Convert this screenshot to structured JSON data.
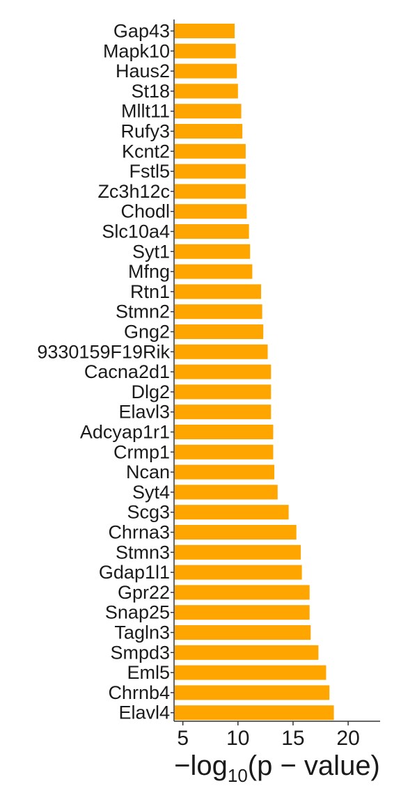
{
  "chart_data": {
    "type": "bar",
    "orientation": "horizontal",
    "categories": [
      "Gap43",
      "Mapk10",
      "Haus2",
      "St18",
      "Mllt11",
      "Rufy3",
      "Kcnt2",
      "Fstl5",
      "Zc3h12c",
      "Chodl",
      "Slc10a4",
      "Syt1",
      "Mfng",
      "Rtn1",
      "Stmn2",
      "Gng2",
      "9330159F19Rik",
      "Cacna2d1",
      "Dlg2",
      "Elavl3",
      "Adcyap1r1",
      "Crmp1",
      "Ncan",
      "Syt4",
      "Scg3",
      "Chrna3",
      "Stmn3",
      "Gdap1l1",
      "Gpr22",
      "Snap25",
      "Tagln3",
      "Smpd3",
      "Eml5",
      "Chrnb4",
      "Elavl4"
    ],
    "values": [
      9.7,
      9.8,
      9.9,
      10.0,
      10.3,
      10.4,
      10.7,
      10.7,
      10.7,
      10.8,
      11.0,
      11.1,
      11.3,
      12.1,
      12.2,
      12.3,
      12.7,
      13.0,
      13.0,
      13.0,
      13.2,
      13.2,
      13.3,
      13.6,
      14.6,
      15.3,
      15.7,
      15.8,
      16.5,
      16.5,
      16.6,
      17.3,
      18.0,
      18.3,
      18.7
    ],
    "x_ticks": [
      5,
      10,
      15,
      20
    ],
    "xlim": [
      4.2,
      22.9
    ],
    "xlabel_parts": {
      "minus": "−",
      "log": "log",
      "base": "10",
      "rest": "(p − value)"
    },
    "bar_color": "#FFA500",
    "axis_color": "#333333",
    "grid": false,
    "legend": "none"
  }
}
